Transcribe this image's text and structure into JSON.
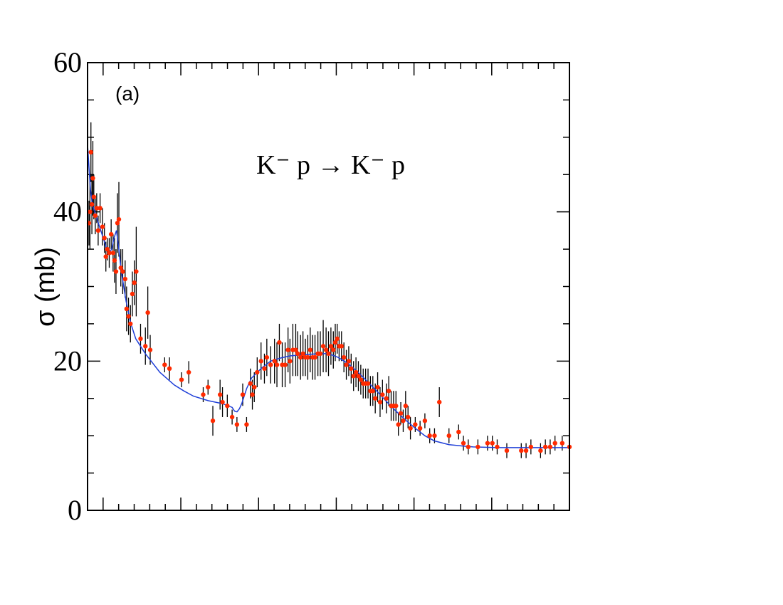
{
  "chart_data": {
    "type": "scatter",
    "panel_label": "(a)",
    "reaction_label": "K⁻ p → K⁻ p",
    "xlabel": "",
    "ylabel": "σ (mb)",
    "xlim": [
      0,
      1
    ],
    "ylim": [
      0,
      60
    ],
    "y_ticks": [
      0,
      20,
      40,
      60
    ],
    "y_tick_labels": [
      "0",
      "20",
      "40",
      "60"
    ],
    "grid": false,
    "colors": {
      "points": "#ff2a00",
      "fit": "#1f3fd8",
      "errors": "#000000"
    },
    "series": [
      {
        "kind": "points_with_errors",
        "points": [
          [
            0.003,
            38.5,
            3
          ],
          [
            0.005,
            40,
            5
          ],
          [
            0.007,
            48,
            4
          ],
          [
            0.009,
            41,
            4
          ],
          [
            0.011,
            44.5,
            5
          ],
          [
            0.013,
            42,
            3
          ],
          [
            0.016,
            39.5,
            2.5
          ],
          [
            0.019,
            40.5,
            2
          ],
          [
            0.022,
            37.5,
            2
          ],
          [
            0.026,
            40.5,
            2
          ],
          [
            0.031,
            38,
            2.5
          ],
          [
            0.035,
            36.5,
            2
          ],
          [
            0.038,
            34,
            2
          ],
          [
            0.041,
            35,
            1.5
          ],
          [
            0.045,
            34.5,
            2
          ],
          [
            0.049,
            37,
            2
          ],
          [
            0.053,
            34.5,
            2.5
          ],
          [
            0.056,
            33.5,
            3
          ],
          [
            0.059,
            32,
            3
          ],
          [
            0.062,
            38.5,
            4
          ],
          [
            0.065,
            39,
            5
          ],
          [
            0.069,
            32.5,
            2.5
          ],
          [
            0.073,
            32,
            3
          ],
          [
            0.078,
            31,
            2.5
          ],
          [
            0.081,
            27,
            3
          ],
          [
            0.085,
            26,
            2.5
          ],
          [
            0.089,
            25,
            2.5
          ],
          [
            0.093,
            29,
            3
          ],
          [
            0.097,
            30.5,
            3
          ],
          [
            0.101,
            32,
            6
          ],
          [
            0.11,
            23,
            2
          ],
          [
            0.12,
            22,
            2.5
          ],
          [
            0.125,
            26.5,
            3.5
          ],
          [
            0.13,
            21.5,
            2
          ],
          [
            0.16,
            19.5,
            1
          ],
          [
            0.17,
            19,
            1.5
          ],
          [
            0.195,
            17.5,
            1
          ],
          [
            0.21,
            18.5,
            1.5
          ],
          [
            0.24,
            15.5,
            1
          ],
          [
            0.25,
            16.5,
            1
          ],
          [
            0.26,
            12,
            2
          ],
          [
            0.275,
            15.5,
            2
          ],
          [
            0.28,
            14.5,
            2
          ],
          [
            0.29,
            14,
            1.5
          ],
          [
            0.3,
            12.5,
            1
          ],
          [
            0.31,
            11.5,
            1
          ],
          [
            0.322,
            15.5,
            1.5
          ],
          [
            0.33,
            11.5,
            1
          ],
          [
            0.338,
            17,
            2
          ],
          [
            0.342,
            15.5,
            2
          ],
          [
            0.346,
            16.5,
            2
          ],
          [
            0.352,
            18.5,
            2
          ],
          [
            0.36,
            20,
            2.5
          ],
          [
            0.367,
            19,
            2
          ],
          [
            0.372,
            20.5,
            2.5
          ],
          [
            0.38,
            19.5,
            2.5
          ],
          [
            0.388,
            20,
            3
          ],
          [
            0.393,
            19.5,
            3
          ],
          [
            0.398,
            22.5,
            2.5
          ],
          [
            0.404,
            19.5,
            3
          ],
          [
            0.41,
            19.5,
            3
          ],
          [
            0.416,
            21.5,
            3
          ],
          [
            0.42,
            20,
            3
          ],
          [
            0.426,
            21.5,
            3.5
          ],
          [
            0.432,
            21.5,
            3.5
          ],
          [
            0.436,
            21,
            3
          ],
          [
            0.442,
            20.5,
            3
          ],
          [
            0.447,
            21,
            3
          ],
          [
            0.452,
            20.5,
            2.5
          ],
          [
            0.457,
            20.5,
            3
          ],
          [
            0.462,
            21.5,
            3
          ],
          [
            0.467,
            20.5,
            3
          ],
          [
            0.472,
            20.5,
            3
          ],
          [
            0.478,
            21,
            3
          ],
          [
            0.483,
            21,
            3
          ],
          [
            0.489,
            22,
            3.5
          ],
          [
            0.495,
            21.5,
            3
          ],
          [
            0.5,
            21,
            3
          ],
          [
            0.505,
            22,
            2.5
          ],
          [
            0.51,
            21.5,
            2.5
          ],
          [
            0.514,
            22.5,
            2.5
          ],
          [
            0.518,
            23,
            2
          ],
          [
            0.522,
            22,
            2
          ],
          [
            0.527,
            22,
            2
          ],
          [
            0.532,
            20.5,
            2
          ],
          [
            0.537,
            19.5,
            2
          ],
          [
            0.542,
            20,
            2
          ],
          [
            0.547,
            19,
            2
          ],
          [
            0.552,
            18,
            2
          ],
          [
            0.557,
            18.5,
            2
          ],
          [
            0.562,
            18,
            2
          ],
          [
            0.567,
            17.5,
            2
          ],
          [
            0.572,
            17,
            2
          ],
          [
            0.577,
            17,
            2
          ],
          [
            0.582,
            17,
            2
          ],
          [
            0.587,
            16,
            2
          ],
          [
            0.592,
            16,
            2
          ],
          [
            0.597,
            15,
            2
          ],
          [
            0.602,
            16.5,
            2
          ],
          [
            0.607,
            14.5,
            2
          ],
          [
            0.612,
            15.5,
            2
          ],
          [
            0.62,
            15,
            2
          ],
          [
            0.625,
            16,
            2
          ],
          [
            0.63,
            14,
            2
          ],
          [
            0.635,
            14,
            2
          ],
          [
            0.64,
            14,
            2
          ],
          [
            0.645,
            11.5,
            1.5
          ],
          [
            0.65,
            13,
            1.5
          ],
          [
            0.655,
            12,
            1.5
          ],
          [
            0.66,
            14,
            2
          ],
          [
            0.665,
            12.5,
            1.5
          ],
          [
            0.67,
            11,
            1.5
          ],
          [
            0.68,
            11.5,
            1
          ],
          [
            0.69,
            11,
            1
          ],
          [
            0.7,
            12,
            1
          ],
          [
            0.71,
            10,
            1
          ],
          [
            0.72,
            10,
            1
          ],
          [
            0.73,
            14.5,
            2
          ],
          [
            0.75,
            10,
            1
          ],
          [
            0.77,
            10.5,
            1
          ],
          [
            0.78,
            9,
            1
          ],
          [
            0.79,
            8.5,
            1
          ],
          [
            0.81,
            8.5,
            1
          ],
          [
            0.83,
            9,
            1
          ],
          [
            0.84,
            9,
            1
          ],
          [
            0.85,
            8.5,
            1
          ],
          [
            0.87,
            8,
            1
          ],
          [
            0.9,
            8,
            1
          ],
          [
            0.91,
            8,
            1
          ],
          [
            0.92,
            8.5,
            1
          ],
          [
            0.94,
            8,
            1
          ],
          [
            0.95,
            8.5,
            1
          ],
          [
            0.96,
            8.5,
            1
          ],
          [
            0.97,
            9,
            1
          ],
          [
            0.985,
            9,
            1
          ],
          [
            1,
            8.5,
            1
          ]
        ]
      },
      {
        "kind": "fit_curve",
        "x": [
          0,
          0.003,
          0.006,
          0.01,
          0.015,
          0.02,
          0.03,
          0.04,
          0.045,
          0.05,
          0.055,
          0.06,
          0.065,
          0.07,
          0.08,
          0.09,
          0.1,
          0.12,
          0.15,
          0.18,
          0.2,
          0.22,
          0.25,
          0.28,
          0.3,
          0.305,
          0.31,
          0.315,
          0.32,
          0.325,
          0.33,
          0.34,
          0.36,
          0.38,
          0.4,
          0.42,
          0.44,
          0.46,
          0.48,
          0.5,
          0.52,
          0.54,
          0.56,
          0.58,
          0.6,
          0.62,
          0.64,
          0.66,
          0.68,
          0.7,
          0.72,
          0.75,
          0.78,
          0.8,
          0.85,
          0.9,
          0.95,
          1
        ],
        "y": [
          49,
          46,
          43,
          41,
          40,
          39,
          37,
          35,
          34.5,
          35,
          36.5,
          37.5,
          35,
          32,
          28,
          25,
          23,
          21,
          18.5,
          16.8,
          16,
          15.3,
          14.7,
          14.3,
          13.8,
          13.3,
          13.2,
          13.6,
          14.3,
          15.3,
          16.3,
          17.7,
          19,
          20,
          20.4,
          20.7,
          20.8,
          20.9,
          21,
          21,
          20.5,
          19.7,
          18.6,
          17.3,
          16,
          14.6,
          13.3,
          12.1,
          11,
          10,
          9.3,
          8.8,
          8.6,
          8.5,
          8.4,
          8.4,
          8.4,
          8.4
        ]
      }
    ]
  }
}
